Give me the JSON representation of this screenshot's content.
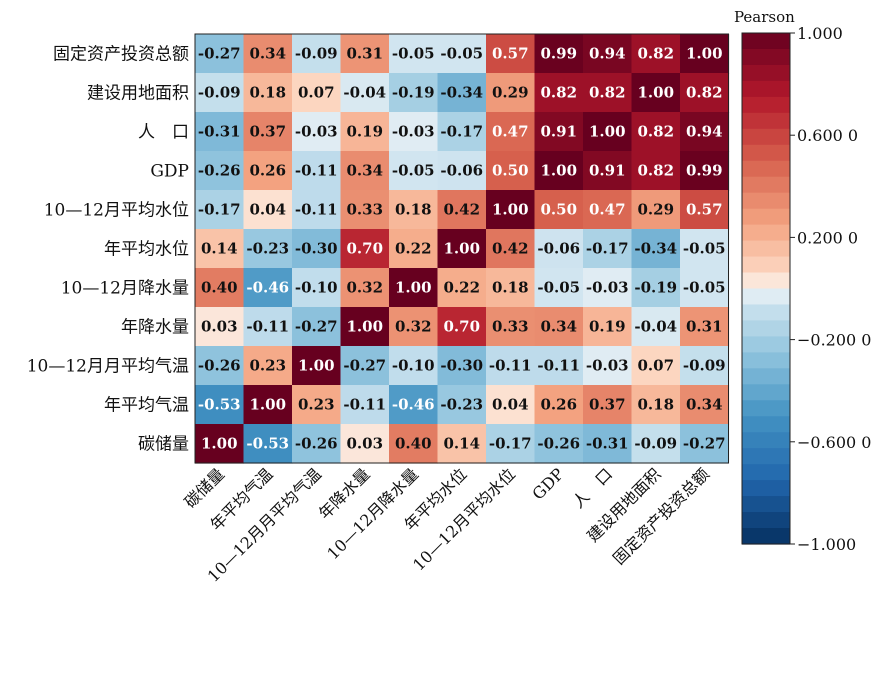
{
  "chart_data": {
    "type": "heatmap",
    "title": "",
    "xlabel": "",
    "ylabel": "",
    "row_labels": [
      "固定资产投资总额",
      "建设用地面积",
      "人　口",
      "GDP",
      "10—12月平均水位",
      "年平均水位",
      "10—12月降水量",
      "年降水量",
      "10—12月月平均气温",
      "年平均气温",
      "碳储量"
    ],
    "col_labels": [
      "碳储量",
      "年平均气温",
      "10—12月月平均气温",
      "年降水量",
      "10—12月降水量",
      "年平均水位",
      "10—12月平均水位",
      "GDP",
      "人　口",
      "建设用地面积",
      "固定资产投资总额"
    ],
    "values": [
      [
        -0.27,
        0.34,
        -0.09,
        0.31,
        -0.05,
        -0.05,
        0.57,
        0.99,
        0.94,
        0.82,
        1.0
      ],
      [
        -0.09,
        0.18,
        0.07,
        -0.04,
        -0.19,
        -0.34,
        0.29,
        0.82,
        0.82,
        1.0,
        0.82
      ],
      [
        -0.31,
        0.37,
        -0.03,
        0.19,
        -0.03,
        -0.17,
        0.47,
        0.91,
        1.0,
        0.82,
        0.94
      ],
      [
        -0.26,
        0.26,
        -0.11,
        0.34,
        -0.05,
        -0.06,
        0.5,
        1.0,
        0.91,
        0.82,
        0.99
      ],
      [
        -0.17,
        0.04,
        -0.11,
        0.33,
        0.18,
        0.42,
        1.0,
        0.5,
        0.47,
        0.29,
        0.57
      ],
      [
        0.14,
        -0.23,
        -0.3,
        0.7,
        0.22,
        1.0,
        0.42,
        -0.06,
        -0.17,
        -0.34,
        -0.05
      ],
      [
        0.4,
        -0.46,
        -0.1,
        0.32,
        1.0,
        0.22,
        0.18,
        -0.05,
        -0.03,
        -0.19,
        -0.05
      ],
      [
        0.03,
        -0.11,
        -0.27,
        1.0,
        0.32,
        0.7,
        0.33,
        0.34,
        0.19,
        -0.04,
        0.31
      ],
      [
        -0.26,
        0.23,
        1.0,
        -0.27,
        -0.1,
        -0.3,
        -0.11,
        -0.11,
        -0.03,
        0.07,
        -0.09
      ],
      [
        -0.53,
        1.0,
        0.23,
        -0.11,
        -0.46,
        -0.23,
        0.04,
        0.26,
        0.37,
        0.18,
        0.34
      ],
      [
        1.0,
        -0.53,
        -0.26,
        0.03,
        0.4,
        0.14,
        -0.17,
        -0.26,
        -0.31,
        -0.09,
        -0.27
      ]
    ],
    "colorbar": {
      "title": "Pearson",
      "range": [
        -1.0,
        1.0
      ],
      "ticks": [
        1.0,
        0.6,
        0.2,
        -0.2,
        -0.6,
        -1.0
      ],
      "tick_labels": [
        "1.000",
        "0.600 0",
        "0.200 0",
        "−0.200 0",
        "−0.600 0",
        "−1.000"
      ],
      "colormap": "RdBu_r",
      "steps": 32
    },
    "grid": false,
    "legend": "right"
  }
}
